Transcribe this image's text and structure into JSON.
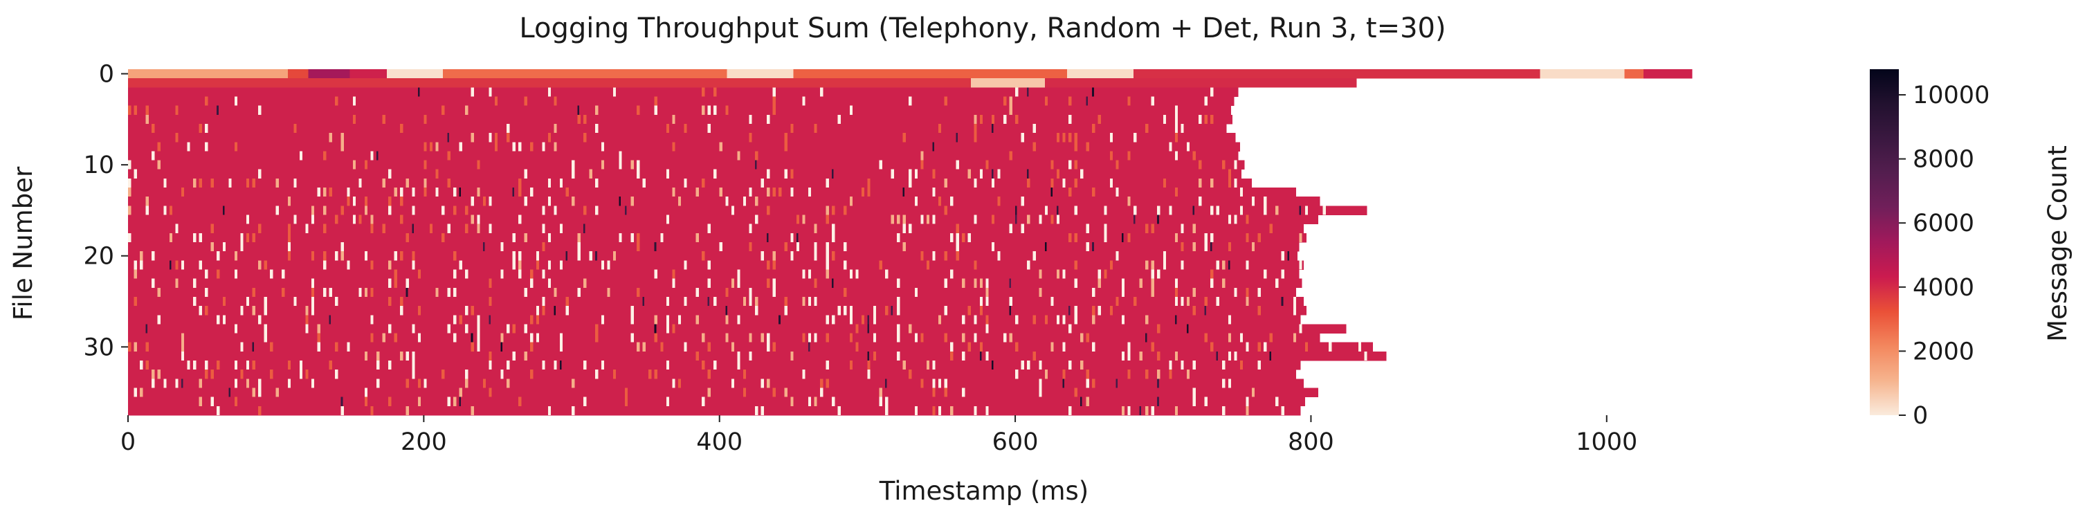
{
  "chart_data": {
    "type": "heatmap",
    "title": "Logging Throughput Sum (Telephony, Random + Det, Run 3, t=30)",
    "xlabel": "Timestamp (ms)",
    "ylabel": "File Number",
    "xlim": [
      0,
      1060
    ],
    "ylim": [
      0,
      38
    ],
    "y_inverted": true,
    "xticks": [
      0,
      200,
      400,
      600,
      800,
      1000
    ],
    "yticks": [
      0,
      10,
      20,
      30
    ],
    "rows": 38,
    "bin_ms": 2,
    "colorbar": {
      "label": "Message Count",
      "min": 0,
      "max": 10800,
      "ticks": [
        0,
        2000,
        4000,
        6000,
        8000,
        10000
      ],
      "colormap": "rocket_r"
    },
    "typical_value": 4200,
    "row_end_ms": [
      1058,
      831,
      751,
      748,
      746,
      747,
      743,
      749,
      752,
      751,
      755,
      753,
      760,
      790,
      806,
      838,
      805,
      795,
      797,
      792,
      791,
      795,
      792,
      794,
      790,
      795,
      797,
      793,
      824,
      806,
      842,
      851,
      793,
      790,
      795,
      805,
      796,
      793
    ],
    "row0_segments": [
      {
        "start_ms": 0,
        "end_ms": 108,
        "value": 1500
      },
      {
        "start_ms": 108,
        "end_ms": 122,
        "value": 3400
      },
      {
        "start_ms": 122,
        "end_ms": 150,
        "value": 5300
      },
      {
        "start_ms": 150,
        "end_ms": 175,
        "value": 4200
      },
      {
        "start_ms": 175,
        "end_ms": 213,
        "value": 200
      },
      {
        "start_ms": 213,
        "end_ms": 405,
        "value": 2700
      },
      {
        "start_ms": 405,
        "end_ms": 450,
        "value": 300
      },
      {
        "start_ms": 450,
        "end_ms": 635,
        "value": 2900
      },
      {
        "start_ms": 635,
        "end_ms": 680,
        "value": 300
      },
      {
        "start_ms": 680,
        "end_ms": 955,
        "value": 3900
      },
      {
        "start_ms": 955,
        "end_ms": 1012,
        "value": 300
      },
      {
        "start_ms": 1012,
        "end_ms": 1025,
        "value": 2800
      },
      {
        "start_ms": 1025,
        "end_ms": 1058,
        "value": 4200
      }
    ],
    "row1_segments": [
      {
        "start_ms": 0,
        "end_ms": 570,
        "value": 3800
      },
      {
        "start_ms": 570,
        "end_ms": 620,
        "value": 700
      },
      {
        "start_ms": 620,
        "end_ms": 831,
        "value": 4000
      }
    ]
  }
}
